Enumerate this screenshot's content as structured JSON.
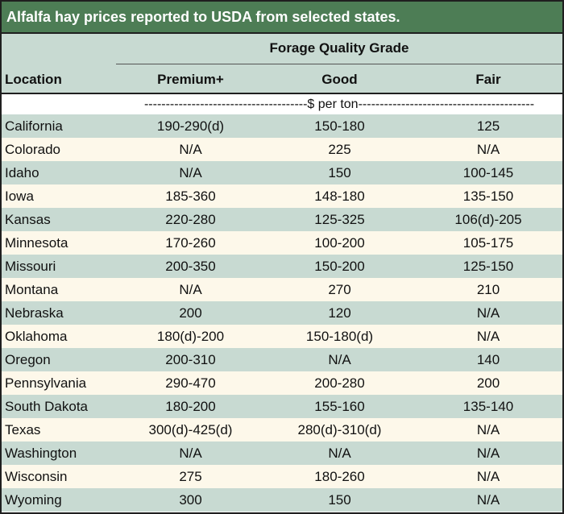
{
  "title": "Alfalfa hay prices reported to USDA from selected states.",
  "header": {
    "group": "Forage Quality Grade",
    "location": "Location",
    "columns": [
      "Premium+",
      "Good",
      "Fair"
    ]
  },
  "unit_line": "--------------------------------------$ per ton-----------------------------------------",
  "rows": [
    {
      "location": "California",
      "premium": "190-290(d)",
      "good": "150-180",
      "fair": "125"
    },
    {
      "location": "Colorado",
      "premium": "N/A",
      "good": "225",
      "fair": "N/A"
    },
    {
      "location": "Idaho",
      "premium": "N/A",
      "good": "150",
      "fair": "100-145"
    },
    {
      "location": "Iowa",
      "premium": "185-360",
      "good": "148-180",
      "fair": "135-150"
    },
    {
      "location": "Kansas",
      "premium": "220-280",
      "good": "125-325",
      "fair": "106(d)-205"
    },
    {
      "location": "Minnesota",
      "premium": "170-260",
      "good": "100-200",
      "fair": "105-175"
    },
    {
      "location": "Missouri",
      "premium": "200-350",
      "good": "150-200",
      "fair": "125-150"
    },
    {
      "location": "Montana",
      "premium": "N/A",
      "good": "270",
      "fair": "210"
    },
    {
      "location": "Nebraska",
      "premium": "200",
      "good": "120",
      "fair": "N/A"
    },
    {
      "location": "Oklahoma",
      "premium": "180(d)-200",
      "good": "150-180(d)",
      "fair": "N/A"
    },
    {
      "location": "Oregon",
      "premium": "200-310",
      "good": "N/A",
      "fair": "140"
    },
    {
      "location": "Pennsylvania",
      "premium": "290-470",
      "good": "200-280",
      "fair": "200"
    },
    {
      "location": "South Dakota",
      "premium": "180-200",
      "good": "155-160",
      "fair": "135-140"
    },
    {
      "location": "Texas",
      "premium": "300(d)-425(d)",
      "good": "280(d)-310(d)",
      "fair": "N/A"
    },
    {
      "location": "Washington",
      "premium": "N/A",
      "good": "N/A",
      "fair": "N/A"
    },
    {
      "location": "Wisconsin",
      "premium": "275",
      "good": "180-260",
      "fair": "N/A"
    },
    {
      "location": "Wyoming",
      "premium": "300",
      "good": "150",
      "fair": "N/A"
    }
  ],
  "colors": {
    "title_bg": "#4d7d55",
    "band": "#c8dad2",
    "cream": "#fdf8ea"
  }
}
